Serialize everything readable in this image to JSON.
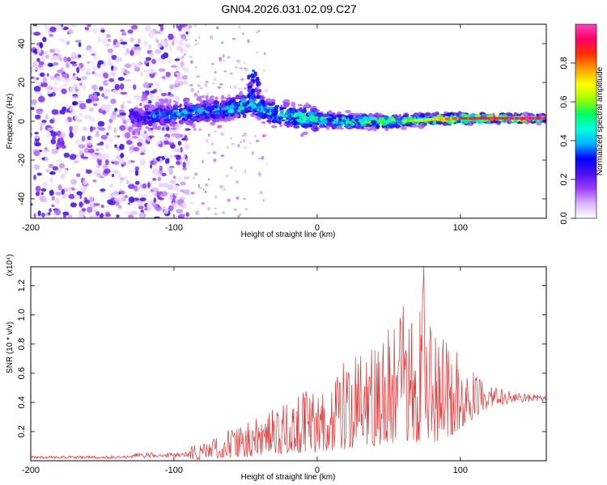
{
  "page_title": "GN04.2026.031.02.09.C27",
  "chart_data": [
    {
      "type": "heatmap",
      "title": "GN04.2026.031.02.09.C27",
      "xlabel": "Height of straight line (km)",
      "ylabel": "Frequency (Hz)",
      "xlim": [
        -200,
        160
      ],
      "ylim": [
        -50,
        50
      ],
      "x_ticks": [
        -200,
        -100,
        0,
        100
      ],
      "x_tick_labels": [
        "-200",
        "-100",
        "0",
        "100"
      ],
      "y_ticks": [
        -40,
        -20,
        0,
        20,
        40
      ],
      "y_tick_labels": [
        "-40",
        "-20",
        "0",
        "20",
        "40"
      ],
      "ridge": {
        "x": [
          -125,
          -110,
          -95,
          -80,
          -65,
          -50,
          -45,
          -40,
          -30,
          -15,
          0,
          20,
          40,
          60,
          80,
          100,
          120,
          140,
          160
        ],
        "center_hz": [
          2,
          3,
          4,
          5,
          6,
          8,
          9,
          7,
          4,
          2,
          1,
          0,
          0,
          0,
          1,
          1.5,
          1.5,
          1.5,
          1.5
        ],
        "max_amplitude": [
          0.35,
          0.4,
          0.45,
          0.45,
          0.45,
          0.55,
          0.6,
          0.55,
          0.55,
          0.55,
          0.6,
          0.6,
          0.65,
          0.65,
          0.75,
          0.9,
          1.0,
          1.0,
          1.0
        ]
      },
      "colorbar": {
        "label": "Normalized spectral amplitude",
        "range": [
          0,
          1
        ],
        "ticks": [
          0.0,
          0.2,
          0.4,
          0.6,
          0.8
        ],
        "tick_labels": [
          "0.0",
          "0.2",
          "0.4",
          "0.6",
          "0.8"
        ],
        "colors": [
          "#ffffff",
          "#d8b4ff",
          "#9a3cff",
          "#4a10f0",
          "#0000ff",
          "#00b4ff",
          "#00ffe0",
          "#00ff60",
          "#a0ff00",
          "#ffff00",
          "#ffa000",
          "#ff3000",
          "#ff0060",
          "#ff40c0"
        ]
      },
      "grid": false
    },
    {
      "type": "line",
      "xlabel": "Height of straight line (km)",
      "ylabel": "SNR (10 * v/v)",
      "y_multiplier_label": "(x10⁴)",
      "xlim": [
        -200,
        160
      ],
      "ylim": [
        0,
        1.33
      ],
      "x_ticks": [
        -200,
        -100,
        0,
        100
      ],
      "x_tick_labels": [
        "-200",
        "-100",
        "0",
        "100"
      ],
      "y_ticks": [
        0.2,
        0.4,
        0.6,
        0.8,
        1.0,
        1.2
      ],
      "y_tick_labels": [
        "0.2",
        "0.4",
        "0.6",
        "0.8",
        "1.0",
        "1.2"
      ],
      "color": "#e83232",
      "series": [
        {
          "name": "SNR",
          "x": [
            -200,
            -150,
            -120,
            -100,
            -80,
            -60,
            -40,
            -20,
            0,
            20,
            40,
            60,
            70,
            74,
            80,
            90,
            100,
            110,
            120,
            140,
            160
          ],
          "upper": [
            0.02,
            0.03,
            0.04,
            0.08,
            0.12,
            0.22,
            0.3,
            0.45,
            0.5,
            0.75,
            0.85,
            1.0,
            0.95,
            1.33,
            0.95,
            0.9,
            0.72,
            0.6,
            0.52,
            0.46,
            0.45
          ],
          "lower": [
            0.0,
            0.0,
            0.0,
            0.0,
            0.01,
            0.02,
            0.03,
            0.05,
            0.06,
            0.08,
            0.1,
            0.12,
            0.12,
            0.1,
            0.12,
            0.15,
            0.22,
            0.3,
            0.36,
            0.4,
            0.41
          ]
        }
      ]
    }
  ]
}
